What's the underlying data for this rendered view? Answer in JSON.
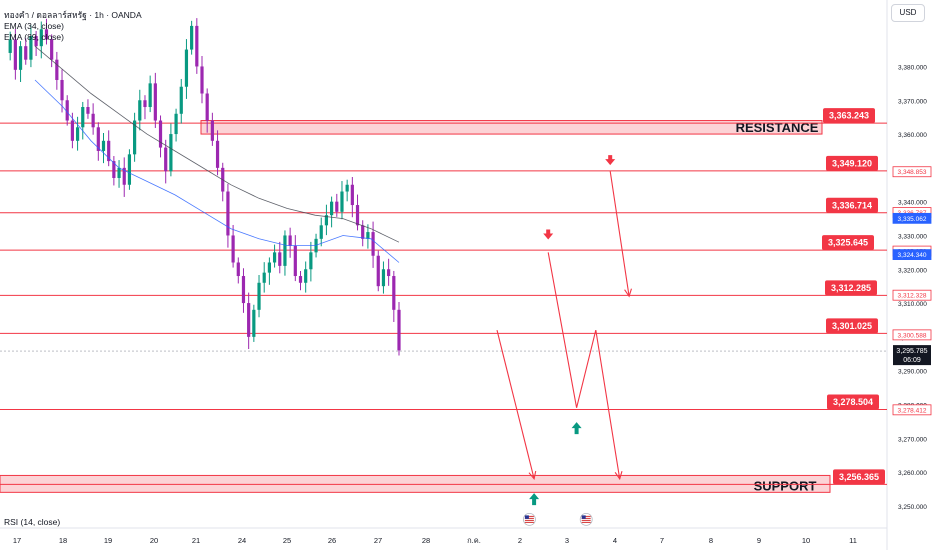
{
  "header": {
    "symbol_line": "ทองคำ / ดอลลาร์สหรัฐ · 1h · OANDA",
    "indicators": [
      "EMA (34, close)",
      "EMA (89, close)"
    ],
    "currency": "USD"
  },
  "rsi_label": "RSI (14, close)",
  "chart_data": {
    "type": "candlestick",
    "instrument": "ทองคำ / ดอลลาร์สหรัฐ",
    "timeframe": "1h",
    "source": "OANDA",
    "ylim": [
      3244,
      3397
    ],
    "y_ticks": [
      3250,
      3260,
      3270,
      3280,
      3290,
      3300,
      3310,
      3320,
      3330,
      3340,
      3350,
      3360,
      3370,
      3380
    ],
    "x_ticks": [
      "17",
      "18",
      "19",
      "20",
      "21",
      "24",
      "25",
      "26",
      "27",
      "28",
      "ก.ค.",
      "2",
      "3",
      "4",
      "7",
      "8",
      "9",
      "10",
      "11"
    ],
    "close_path": [
      3384,
      3388,
      3379,
      3386,
      3382,
      3389,
      3386,
      3391,
      3388,
      3382,
      3376,
      3370,
      3364,
      3358,
      3362,
      3368,
      3366,
      3362,
      3355,
      3358,
      3352,
      3347,
      3350,
      3345,
      3354,
      3364,
      3370,
      3368,
      3375,
      3364,
      3356,
      3349,
      3360,
      3366,
      3374,
      3385,
      3392,
      3380,
      3372,
      3364,
      3358,
      3350,
      3343,
      3330,
      3322,
      3318,
      3310,
      3300,
      3308,
      3316,
      3319,
      3322,
      3325,
      3321,
      3330,
      3327,
      3318,
      3316,
      3320,
      3325,
      3329,
      3333,
      3336,
      3340,
      3337,
      3343,
      3345,
      3339,
      3333,
      3329,
      3331,
      3324,
      3315,
      3320,
      3318,
      3308,
      3296
    ],
    "ema_34": [
      3376,
      3368,
      3358,
      3350,
      3346,
      3342,
      3337,
      3332,
      3329,
      3327,
      3327,
      3330,
      3329,
      3322
    ],
    "ema_89": [
      3386,
      3379,
      3372,
      3366,
      3360,
      3355,
      3350,
      3345,
      3341,
      3338,
      3336,
      3335,
      3332,
      3328
    ],
    "levels": [
      {
        "value": 3363.243,
        "label": "3,363.243",
        "color": "#f23645"
      },
      {
        "value": 3349.12,
        "label": "3,349.120",
        "color": "#f23645"
      },
      {
        "value": 3336.714,
        "label": "3,336.714",
        "color": "#f23645"
      },
      {
        "value": 3325.645,
        "label": "3,325.645",
        "color": "#f23645"
      },
      {
        "value": 3312.285,
        "label": "3,312.285",
        "color": "#f23645"
      },
      {
        "value": 3301.025,
        "label": "3,301.025",
        "color": "#f23645"
      },
      {
        "value": 3278.504,
        "label": "3,278.504",
        "color": "#f23645"
      },
      {
        "value": 3256.365,
        "label": "3,256.365",
        "color": "#f23645"
      }
    ],
    "zones": [
      {
        "label": "RESISTANCE",
        "low": 3360,
        "high": 3364
      },
      {
        "label": "SUPPORT",
        "low": 3254,
        "high": 3259
      }
    ],
    "price_tags": [
      {
        "value": 3348.853,
        "label": "3,348.853",
        "style": "outline"
      },
      {
        "value": 3336.787,
        "label": "3,336.787",
        "style": "outline"
      },
      {
        "value": 3335.062,
        "label": "3,335.062",
        "style": "blue"
      },
      {
        "value": 3325.373,
        "label": "3,325.373",
        "style": "outline"
      },
      {
        "value": 3324.34,
        "label": "3,324.340",
        "style": "blue"
      },
      {
        "value": 3312.328,
        "label": "3,312.328",
        "style": "outline"
      },
      {
        "value": 3300.588,
        "label": "3,300.588",
        "style": "outline"
      },
      {
        "value": 3278.412,
        "label": "3,278.412",
        "style": "outline"
      }
    ],
    "current_price": {
      "value": 3295.785,
      "label": "3,295.785",
      "countdown": "06:09"
    },
    "projection_paths": [
      {
        "points": [
          [
            27.5,
            3302
          ],
          [
            28.3,
            3258
          ]
        ]
      },
      {
        "points": [
          [
            28.6,
            3325
          ],
          [
            29.2,
            3279
          ],
          [
            29.6,
            3302
          ],
          [
            30.1,
            3258
          ]
        ]
      },
      {
        "points": [
          [
            29.9,
            3349
          ],
          [
            30.3,
            3312
          ]
        ]
      }
    ],
    "markers": [
      {
        "type": "arrow-down",
        "x": 28.6,
        "value": 3330,
        "color": "#f23645"
      },
      {
        "type": "arrow-down",
        "x": 29.9,
        "value": 3352,
        "color": "#f23645"
      },
      {
        "type": "arrow-up",
        "x": 29.2,
        "value": 3273,
        "color": "#089981"
      },
      {
        "type": "arrow-up",
        "x": 28.3,
        "value": 3252,
        "color": "#089981"
      },
      {
        "type": "us-flag-icon",
        "x": 28.2,
        "value": 3246
      },
      {
        "type": "us-flag-icon",
        "x": 29.4,
        "value": 3246
      }
    ],
    "colors": {
      "up": "#089981",
      "down": "#9c27b0",
      "level": "#f23645",
      "ema34": "#2962ff",
      "ema89": "#434651"
    }
  }
}
